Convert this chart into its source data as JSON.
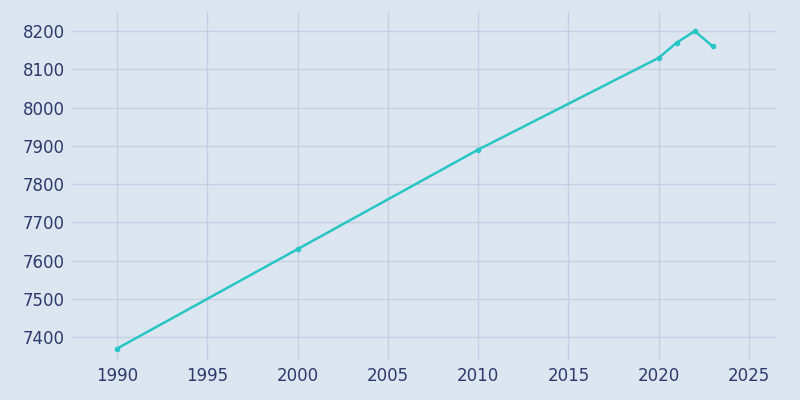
{
  "years": [
    1990,
    2000,
    2010,
    2020,
    2021,
    2022,
    2023
  ],
  "population": [
    7370,
    7630,
    7890,
    8130,
    8170,
    8200,
    8160
  ],
  "line_color": "#28C5C5",
  "marker": "o",
  "marker_size": 3,
  "background_color": "#dce6f0",
  "plot_bg_color": "#dce6f0",
  "grid_color": "#c5d0e0",
  "tick_label_color": "#2d3a6b",
  "xlim": [
    1987.5,
    2026.5
  ],
  "ylim": [
    7340,
    8250
  ],
  "xticks": [
    1990,
    1995,
    2000,
    2005,
    2010,
    2015,
    2020,
    2025
  ],
  "yticks": [
    7400,
    7500,
    7600,
    7700,
    7800,
    7900,
    8000,
    8100,
    8200
  ],
  "linewidth": 1.8,
  "tick_fontsize": 12
}
